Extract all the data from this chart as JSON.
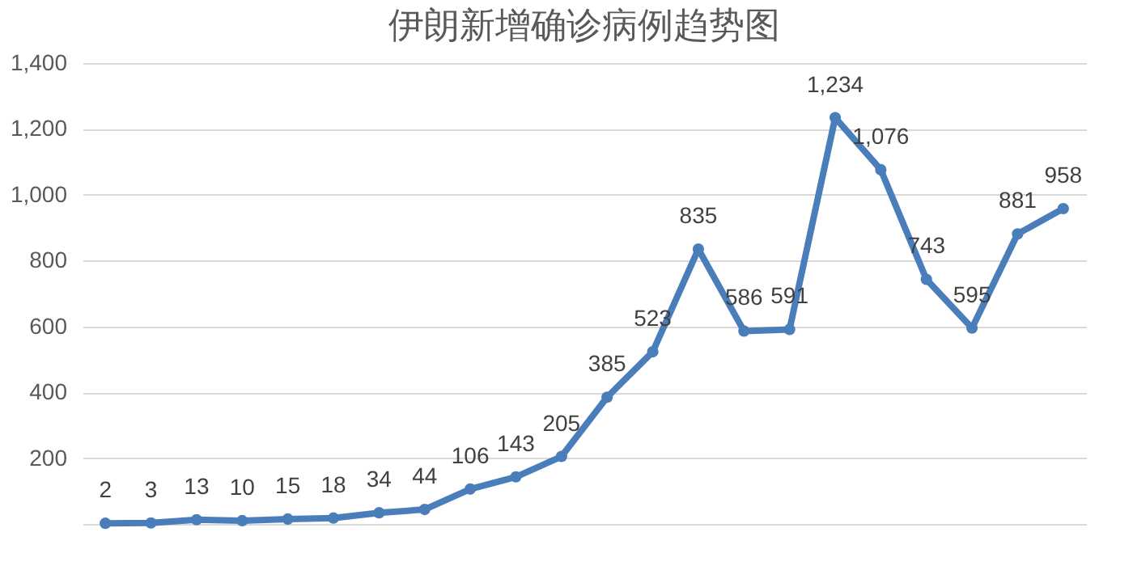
{
  "chart_data": {
    "type": "line",
    "title": "伊朗新增确诊病例趋势图",
    "categories": [
      null,
      null,
      null,
      null,
      null,
      null,
      null,
      null,
      null,
      null,
      null,
      null,
      null,
      null,
      null,
      null,
      null,
      null,
      null,
      null,
      null,
      null
    ],
    "values": [
      2,
      3,
      13,
      10,
      15,
      18,
      34,
      44,
      106,
      143,
      205,
      385,
      523,
      835,
      586,
      591,
      1234,
      1076,
      743,
      595,
      881,
      958
    ],
    "color": "#4a7ebb",
    "ylim": [
      0,
      1400
    ],
    "yticks": [
      {
        "value": 0,
        "label": null
      },
      {
        "value": 200,
        "label": "200"
      },
      {
        "value": 400,
        "label": "400"
      },
      {
        "value": 600,
        "label": "600"
      },
      {
        "value": 800,
        "label": "800"
      },
      {
        "value": 1000,
        "label": "1,000"
      },
      {
        "value": 1200,
        "label": "1,200"
      },
      {
        "value": 1400,
        "label": "1,400"
      }
    ],
    "value_labels": [
      "2",
      "3",
      "13",
      "10",
      "15",
      "18",
      "34",
      "44",
      "106",
      "143",
      "205",
      "385",
      "523",
      "835",
      "586",
      "591",
      "1,234",
      "1,076",
      "743",
      "595",
      "881",
      "958"
    ],
    "grid": "y",
    "marker": "circle",
    "tick_labels": "y"
  }
}
